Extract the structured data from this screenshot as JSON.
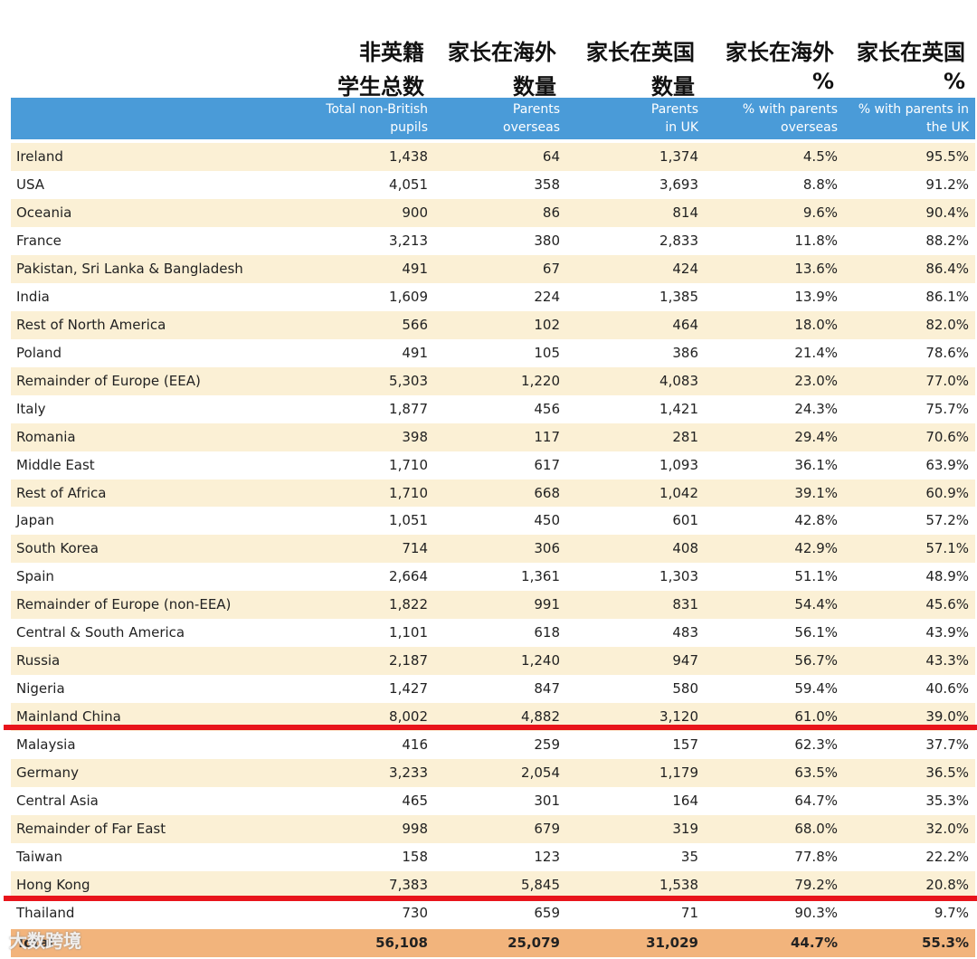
{
  "header_zh": [
    [
      "非英籍",
      "学生总数"
    ],
    [
      "家长在海外",
      "数量"
    ],
    [
      "家长在英国",
      "数量"
    ],
    [
      "家长在海外",
      "%"
    ],
    [
      "家长在英国",
      "%"
    ]
  ],
  "header_en": [
    [
      "Total non-British",
      "pupils"
    ],
    [
      "Parents",
      "overseas"
    ],
    [
      "Parents",
      "in UK"
    ],
    [
      "% with parents",
      "overseas"
    ],
    [
      "% with parents in",
      "the UK"
    ]
  ],
  "table": {
    "rows": [
      [
        "Ireland",
        "1,438",
        "64",
        "1,374",
        "4.5%",
        "95.5%"
      ],
      [
        "USA",
        "4,051",
        "358",
        "3,693",
        "8.8%",
        "91.2%"
      ],
      [
        "Oceania",
        "900",
        "86",
        "814",
        "9.6%",
        "90.4%"
      ],
      [
        "France",
        "3,213",
        "380",
        "2,833",
        "11.8%",
        "88.2%"
      ],
      [
        "Pakistan, Sri Lanka & Bangladesh",
        "491",
        "67",
        "424",
        "13.6%",
        "86.4%"
      ],
      [
        "India",
        "1,609",
        "224",
        "1,385",
        "13.9%",
        "86.1%"
      ],
      [
        "Rest of North America",
        "566",
        "102",
        "464",
        "18.0%",
        "82.0%"
      ],
      [
        "Poland",
        "491",
        "105",
        "386",
        "21.4%",
        "78.6%"
      ],
      [
        "Remainder of Europe (EEA)",
        "5,303",
        "1,220",
        "4,083",
        "23.0%",
        "77.0%"
      ],
      [
        "Italy",
        "1,877",
        "456",
        "1,421",
        "24.3%",
        "75.7%"
      ],
      [
        "Romania",
        "398",
        "117",
        "281",
        "29.4%",
        "70.6%"
      ],
      [
        "Middle East",
        "1,710",
        "617",
        "1,093",
        "36.1%",
        "63.9%"
      ],
      [
        "Rest of Africa",
        "1,710",
        "668",
        "1,042",
        "39.1%",
        "60.9%"
      ],
      [
        "Japan",
        "1,051",
        "450",
        "601",
        "42.8%",
        "57.2%"
      ],
      [
        "South Korea",
        "714",
        "306",
        "408",
        "42.9%",
        "57.1%"
      ],
      [
        "Spain",
        "2,664",
        "1,361",
        "1,303",
        "51.1%",
        "48.9%"
      ],
      [
        "Remainder of Europe (non-EEA)",
        "1,822",
        "991",
        "831",
        "54.4%",
        "45.6%"
      ],
      [
        "Central & South America",
        "1,101",
        "618",
        "483",
        "56.1%",
        "43.9%"
      ],
      [
        "Russia",
        "2,187",
        "1,240",
        "947",
        "56.7%",
        "43.3%"
      ],
      [
        "Nigeria",
        "1,427",
        "847",
        "580",
        "59.4%",
        "40.6%"
      ],
      [
        "Mainland China",
        "8,002",
        "4,882",
        "3,120",
        "61.0%",
        "39.0%"
      ],
      [
        "Malaysia",
        "416",
        "259",
        "157",
        "62.3%",
        "37.7%"
      ],
      [
        "Germany",
        "3,233",
        "2,054",
        "1,179",
        "63.5%",
        "36.5%"
      ],
      [
        "Central Asia",
        "465",
        "301",
        "164",
        "64.7%",
        "35.3%"
      ],
      [
        "Remainder of Far East",
        "998",
        "679",
        "319",
        "68.0%",
        "32.0%"
      ],
      [
        "Taiwan",
        "158",
        "123",
        "35",
        "77.8%",
        "22.2%"
      ],
      [
        "Hong Kong",
        "7,383",
        "5,845",
        "1,538",
        "79.2%",
        "20.8%"
      ],
      [
        "Thailand",
        "730",
        "659",
        "71",
        "90.3%",
        "9.7%"
      ]
    ],
    "total": [
      "Total",
      "56,108",
      "25,079",
      "31,029",
      "44.7%",
      "55.3%"
    ]
  },
  "watermark": "大数跨境"
}
